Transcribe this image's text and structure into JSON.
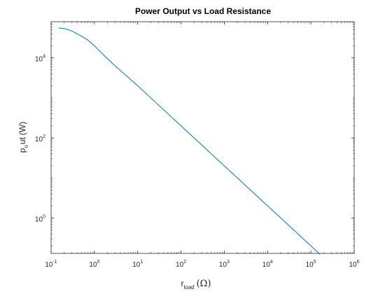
{
  "chart_data": {
    "type": "line",
    "title": "Power Output vs Load Resistance",
    "xlabel": {
      "main": "r",
      "sub": "load",
      "unit": "(Ω)"
    },
    "ylabel": {
      "p": "p",
      "o": "o",
      "rest": "ut",
      "unit": "(W)"
    },
    "xscale": "log",
    "yscale": "log",
    "xlim": [
      0.1,
      1000000
    ],
    "ylim": [
      0.13,
      80000
    ],
    "x_ticks": [
      {
        "value": 0.1,
        "base": "10",
        "exp": "-1"
      },
      {
        "value": 1,
        "base": "10",
        "exp": "0"
      },
      {
        "value": 10,
        "base": "10",
        "exp": "1"
      },
      {
        "value": 100,
        "base": "10",
        "exp": "2"
      },
      {
        "value": 1000,
        "base": "10",
        "exp": "3"
      },
      {
        "value": 10000,
        "base": "10",
        "exp": "4"
      },
      {
        "value": 100000,
        "base": "10",
        "exp": "5"
      },
      {
        "value": 1000000,
        "base": "10",
        "exp": "6"
      }
    ],
    "y_ticks": [
      {
        "value": 1,
        "base": "10",
        "exp": "0"
      },
      {
        "value": 100,
        "base": "10",
        "exp": "2"
      },
      {
        "value": 10000,
        "base": "10",
        "exp": "4"
      }
    ],
    "grid": false,
    "box": true,
    "series": [
      {
        "color": "#0072BD",
        "x": [
          0.15,
          0.2,
          0.3,
          0.5,
          0.7,
          1,
          2,
          3,
          5,
          10,
          20,
          50,
          100,
          1000,
          10000,
          100000,
          160000
        ],
        "y": [
          56000,
          54000,
          47000,
          35000,
          28000,
          20000,
          9500,
          6300,
          3900,
          2000,
          1000,
          400,
          200,
          20,
          2,
          0.2,
          0.125
        ]
      }
    ]
  }
}
